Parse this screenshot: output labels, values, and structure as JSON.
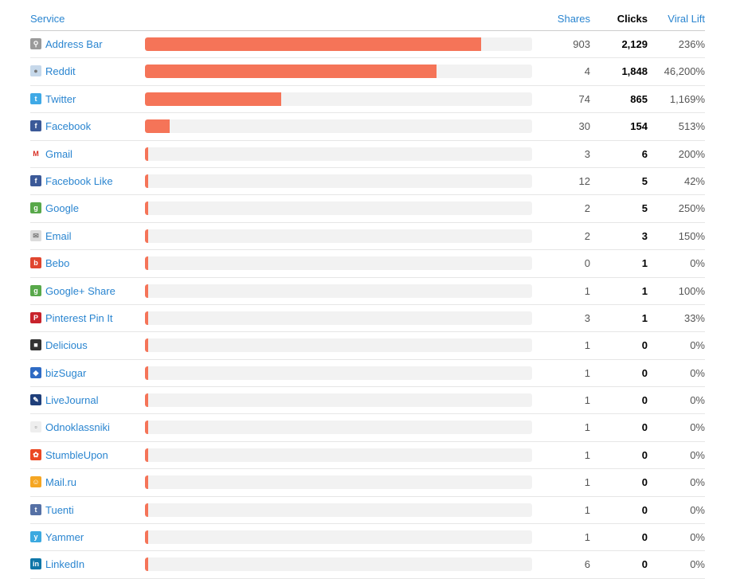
{
  "header": {
    "service": "Service",
    "shares": "Shares",
    "clicks": "Clicks",
    "viral_lift": "Viral Lift"
  },
  "colors": {
    "accent_bar": "#f57458",
    "link": "#2a85d0"
  },
  "rows": [
    {
      "service": "Address Bar",
      "icon": "link-icon",
      "shares": "903",
      "clicks": "2,129",
      "lift": "236%",
      "click_value": 2129
    },
    {
      "service": "Reddit",
      "icon": "reddit-icon",
      "shares": "4",
      "clicks": "1,848",
      "lift": "46,200%",
      "click_value": 1848
    },
    {
      "service": "Twitter",
      "icon": "twitter-icon",
      "shares": "74",
      "clicks": "865",
      "lift": "1,169%",
      "click_value": 865
    },
    {
      "service": "Facebook",
      "icon": "facebook-icon",
      "shares": "30",
      "clicks": "154",
      "lift": "513%",
      "click_value": 154
    },
    {
      "service": "Gmail",
      "icon": "gmail-icon",
      "shares": "3",
      "clicks": "6",
      "lift": "200%",
      "click_value": 6
    },
    {
      "service": "Facebook Like",
      "icon": "facebook-icon",
      "shares": "12",
      "clicks": "5",
      "lift": "42%",
      "click_value": 5
    },
    {
      "service": "Google",
      "icon": "google-icon",
      "shares": "2",
      "clicks": "5",
      "lift": "250%",
      "click_value": 5
    },
    {
      "service": "Email",
      "icon": "email-icon",
      "shares": "2",
      "clicks": "3",
      "lift": "150%",
      "click_value": 3
    },
    {
      "service": "Bebo",
      "icon": "bebo-icon",
      "shares": "0",
      "clicks": "1",
      "lift": "0%",
      "click_value": 1
    },
    {
      "service": "Google+ Share",
      "icon": "google-icon",
      "shares": "1",
      "clicks": "1",
      "lift": "100%",
      "click_value": 1
    },
    {
      "service": "Pinterest Pin It",
      "icon": "pinterest-icon",
      "shares": "3",
      "clicks": "1",
      "lift": "33%",
      "click_value": 1
    },
    {
      "service": "Delicious",
      "icon": "delicious-icon",
      "shares": "1",
      "clicks": "0",
      "lift": "0%",
      "click_value": 0
    },
    {
      "service": "bizSugar",
      "icon": "bizsugar-icon",
      "shares": "1",
      "clicks": "0",
      "lift": "0%",
      "click_value": 0
    },
    {
      "service": "LiveJournal",
      "icon": "livejournal-icon",
      "shares": "1",
      "clicks": "0",
      "lift": "0%",
      "click_value": 0
    },
    {
      "service": "Odnoklassniki",
      "icon": "broken-image-icon",
      "shares": "1",
      "clicks": "0",
      "lift": "0%",
      "click_value": 0
    },
    {
      "service": "StumbleUpon",
      "icon": "stumbleupon-icon",
      "shares": "1",
      "clicks": "0",
      "lift": "0%",
      "click_value": 0
    },
    {
      "service": "Mail.ru",
      "icon": "mailru-icon",
      "shares": "1",
      "clicks": "0",
      "lift": "0%",
      "click_value": 0
    },
    {
      "service": "Tuenti",
      "icon": "tuenti-icon",
      "shares": "1",
      "clicks": "0",
      "lift": "0%",
      "click_value": 0
    },
    {
      "service": "Yammer",
      "icon": "yammer-icon",
      "shares": "1",
      "clicks": "0",
      "lift": "0%",
      "click_value": 0
    },
    {
      "service": "LinkedIn",
      "icon": "linkedin-icon",
      "shares": "6",
      "clicks": "0",
      "lift": "0%",
      "click_value": 0
    }
  ]
}
